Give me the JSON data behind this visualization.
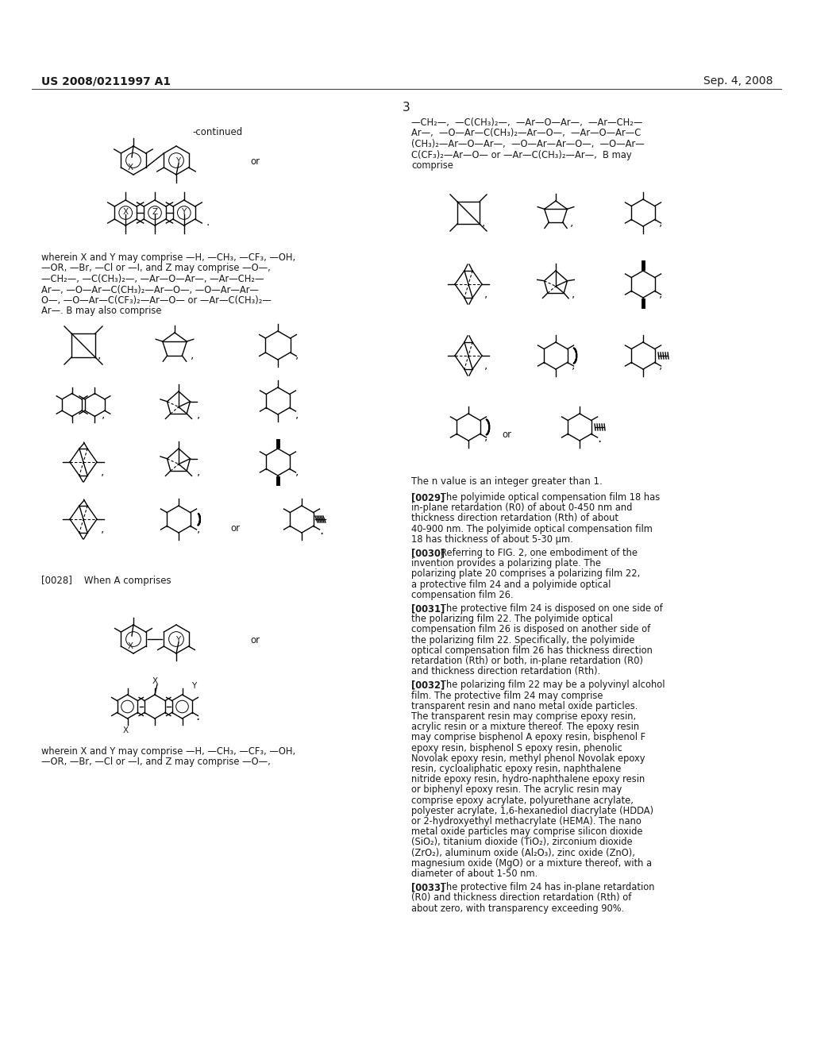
{
  "bg": "#ffffff",
  "header_left": "US 2008/0211997 A1",
  "header_right": "Sep. 4, 2008",
  "page_num": "3",
  "continued": "-continued",
  "left_text1": "wherein X and Y may comprise —H, —CH₃, —CF₃, —OH,\n—OR, —Br, —Cl or —I, and Z may comprise —O—,\n—CH₂—, —C(CH₃)₂—, —Ar—O—Ar—, —Ar—CH₂—\nAr—, —O—Ar—C(CH₃)₂—Ar—O—, —O—Ar—Ar—\nO—, —O—Ar—C(CF₃)₂—Ar—O— or —Ar—C(CH₃)₂—\nAr—. B may also comprise",
  "right_text1": "—CH₂—,  —C(CH₃)₂—,  —Ar—O—Ar—,  —Ar—CH₂—\nAr—,  —O—Ar—C(CH₃)₂—Ar—O—,  —Ar—O—Ar—C\n(CH₃)₂—Ar—O—Ar—,  —O—Ar—Ar—O—,  —O—Ar—\nC(CF₃)₂—Ar—O— or —Ar—C(CH₃)₂—Ar—,  B may\ncomprise",
  "n_value": "The n value is an integer greater than 1.",
  "para0029": "[0029]   The polyimide optical compensation film 18 has in-plane retardation (R0) of about 0-450 nm and thickness direction retardation (Rth) of about 40-900 nm. The polyimide optical compensation film 18 has thickness of about 5-30 μm.",
  "para0030": "[0030]   Referring to FIG. 2, one embodiment of the invention provides a polarizing plate. The polarizing plate 20 comprises a polarizing film 22, a protective film 24 and a polyimide optical compensation film 26.",
  "para0031": "[0031]   The protective film 24 is disposed on one side of the polarizing film 22. The polyimide optical compensation film 26 is disposed on another side of the polarizing film 22. Specifically, the polyimide optical compensation film 26 has thickness direction retardation (Rth) or both, in-plane retardation (R0) and thickness direction retardation (Rth).",
  "para0032": "[0032]   The polarizing film 22 may be a polyvinyl alcohol film. The protective film 24 may comprise transparent resin and nano metal oxide particles. The transparent resin may comprise epoxy resin, acrylic resin or a mixture thereof. The epoxy resin may comprise bisphenol A epoxy resin, bisphenol F epoxy resin, bisphenol S epoxy resin, phenolic Novolak epoxy resin, methyl phenol Novolak epoxy resin, cycloaliphatic epoxy resin, naphthalene nitride epoxy resin, hydro-naphthalene epoxy resin or biphenyl epoxy resin. The acrylic resin may comprise epoxy acrylate, polyurethane acrylate, polyester acrylate, 1,6-hexanediol diacrylate (HDDA) or 2-hydroxyethyl methacrylate (HEMA). The nano metal oxide particles may comprise silicon dioxide (SiO₂), titanium dioxide (TiO₂), zirconium dioxide (ZrO₂), aluminum oxide (Al₂O₃), zinc oxide (ZnO), magnesium oxide (MgO) or a mixture thereof, with a diameter of about 1-50 nm.",
  "para0033": "[0033]   The protective film 24 has in-plane retardation (R0) and thickness direction retardation (Rth) of about zero, with transparency exceeding 90%.",
  "left_text2_a": "wherein X and Y may comprise —H, —CH₃, —CF₃, —OH,",
  "left_text2_b": "—OR, —Br, —Cl or —I, and Z may comprise —O—,",
  "when_a": "[0028]    When A comprises"
}
